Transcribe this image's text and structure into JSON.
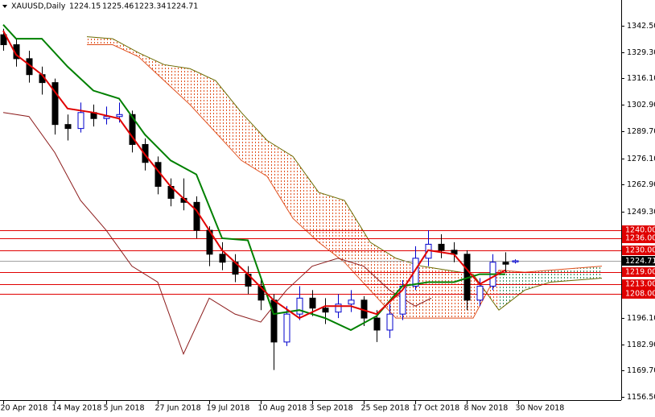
{
  "chart_data": {
    "type": "candlestick",
    "symbol": "XAUUSD,Daily",
    "up_color": "#0000cc",
    "down_color": "#000000",
    "x": [
      0,
      4,
      8,
      12,
      16,
      20,
      24,
      28,
      32,
      36,
      40,
      44,
      48,
      52,
      56,
      60,
      64,
      68,
      72,
      76,
      80,
      84,
      88,
      92,
      96,
      100,
      104,
      108,
      112,
      116,
      120,
      124,
      128,
      132,
      136,
      140,
      144,
      148,
      152,
      156,
      159
    ],
    "ohlc": [
      [
        1338,
        1341,
        1330,
        1333
      ],
      [
        1333,
        1336,
        1322,
        1326
      ],
      [
        1326,
        1330,
        1314,
        1318
      ],
      [
        1318,
        1322,
        1308,
        1314
      ],
      [
        1314,
        1316,
        1288,
        1293
      ],
      [
        1293,
        1298,
        1285,
        1291
      ],
      [
        1291,
        1304,
        1289,
        1299
      ],
      [
        1299,
        1303,
        1292,
        1296
      ],
      [
        1296,
        1302,
        1293,
        1297
      ],
      [
        1297,
        1304,
        1294,
        1298
      ],
      [
        1298,
        1300,
        1279,
        1283
      ],
      [
        1283,
        1286,
        1270,
        1274
      ],
      [
        1274,
        1277,
        1258,
        1262
      ],
      [
        1262,
        1266,
        1252,
        1256
      ],
      [
        1256,
        1266,
        1250,
        1254
      ],
      [
        1254,
        1257,
        1236,
        1240
      ],
      [
        1240,
        1242,
        1222,
        1228
      ],
      [
        1228,
        1234,
        1220,
        1224
      ],
      [
        1224,
        1228,
        1214,
        1218
      ],
      [
        1218,
        1222,
        1208,
        1212
      ],
      [
        1212,
        1216,
        1200,
        1205
      ],
      [
        1205,
        1208,
        1170,
        1184
      ],
      [
        1184,
        1202,
        1182,
        1198
      ],
      [
        1198,
        1212,
        1195,
        1206
      ],
      [
        1206,
        1210,
        1197,
        1201
      ],
      [
        1201,
        1206,
        1193,
        1199
      ],
      [
        1199,
        1208,
        1196,
        1203
      ],
      [
        1203,
        1210,
        1199,
        1205
      ],
      [
        1205,
        1207,
        1192,
        1196
      ],
      [
        1196,
        1200,
        1184,
        1190
      ],
      [
        1190,
        1203,
        1186,
        1198
      ],
      [
        1198,
        1215,
        1195,
        1212
      ],
      [
        1212,
        1232,
        1210,
        1226
      ],
      [
        1226,
        1240,
        1222,
        1233
      ],
      [
        1233,
        1238,
        1226,
        1230
      ],
      [
        1230,
        1234,
        1224,
        1228
      ],
      [
        1228,
        1230,
        1200,
        1205
      ],
      [
        1205,
        1216,
        1202,
        1212
      ],
      [
        1212,
        1228,
        1210,
        1224
      ],
      [
        1224,
        1229,
        1219,
        1223
      ],
      [
        1224.15,
        1225.46,
        1223.34,
        1224.71
      ]
    ],
    "xlim": [
      -1,
      192
    ],
    "xticks": [
      {
        "value": 0,
        "label": "20 Apr 2018"
      },
      {
        "value": 16,
        "label": "14 May 2018"
      },
      {
        "value": 32,
        "label": "5 Jun 2018"
      },
      {
        "value": 48,
        "label": "27 Jun 2018"
      },
      {
        "value": 64,
        "label": "19 Jul 2018"
      },
      {
        "value": 80,
        "label": "10 Aug 2018"
      },
      {
        "value": 96,
        "label": "3 Sep 2018"
      },
      {
        "value": 112,
        "label": "25 Sep 2018"
      },
      {
        "value": 128,
        "label": "17 Oct 2018"
      },
      {
        "value": 144,
        "label": "8 Nov 2018"
      },
      {
        "value": 160,
        "label": "30 Nov 2018"
      }
    ],
    "ylim": [
      1154.9,
      1355.4
    ],
    "yticks": [
      {
        "value": 1342.5,
        "label": "1342.50"
      },
      {
        "value": 1329.3,
        "label": "1329.30"
      },
      {
        "value": 1316.1,
        "label": "1316.10"
      },
      {
        "value": 1302.9,
        "label": "1302.90"
      },
      {
        "value": 1289.7,
        "label": "1289.70"
      },
      {
        "value": 1276.1,
        "label": "1276.10"
      },
      {
        "value": 1262.9,
        "label": "1262.90"
      },
      {
        "value": 1249.3,
        "label": "1249.30"
      },
      {
        "value": 1196.1,
        "label": "1196.10"
      },
      {
        "value": 1182.9,
        "label": "1182.90"
      },
      {
        "value": 1169.7,
        "label": "1169.70"
      },
      {
        "value": 1156.5,
        "label": "1156.50"
      }
    ],
    "levels": {
      "color": "#e00000",
      "values": [
        {
          "value": 1240,
          "label": "1240.00"
        },
        {
          "value": 1236,
          "label": "1236.00"
        },
        {
          "value": 1230,
          "label": "1230.00"
        },
        {
          "value": 1219,
          "label": "1219.00"
        },
        {
          "value": 1213,
          "label": "1213.00"
        },
        {
          "value": 1208,
          "label": "1208.00"
        }
      ]
    },
    "tenkan": {
      "color": "#e00000",
      "x": [
        0,
        4,
        12,
        20,
        28,
        36,
        44,
        52,
        60,
        68,
        76,
        84,
        92,
        100,
        108,
        116,
        124,
        132,
        140,
        148,
        156
      ],
      "values": [
        1340,
        1328,
        1318,
        1301,
        1299,
        1296,
        1278,
        1262,
        1250,
        1230,
        1218,
        1205,
        1196,
        1202,
        1202,
        1198,
        1210,
        1230,
        1228,
        1213,
        1220
      ]
    },
    "kijun": {
      "color": "#008000",
      "x": [
        0,
        4,
        12,
        20,
        28,
        36,
        44,
        52,
        60,
        68,
        76,
        84,
        92,
        100,
        108,
        116,
        124,
        132,
        140,
        148,
        156
      ],
      "values": [
        1343,
        1336,
        1336,
        1322,
        1310,
        1306,
        1288,
        1275,
        1268,
        1236,
        1235,
        1198,
        1200,
        1196,
        1190,
        1197,
        1212,
        1214,
        1214,
        1218,
        1218
      ]
    },
    "chikou": {
      "color": "#8b1a1a",
      "x": [
        0,
        8,
        16,
        24,
        32,
        40,
        48,
        56,
        64,
        72,
        80,
        88,
        96,
        104,
        112,
        120,
        128,
        133
      ],
      "values": [
        1299,
        1297,
        1279,
        1255,
        1240,
        1222,
        1214,
        1178,
        1206,
        1198,
        1194,
        1210,
        1222,
        1226,
        1222,
        1210,
        1202,
        1206
      ]
    },
    "cloud": {
      "bull_color": "#2e8b57",
      "bear_color": "#e0501e",
      "span_a_color": "#e0501e",
      "span_b_color": "#6b6b00",
      "x": [
        26,
        34,
        42,
        50,
        58,
        66,
        74,
        82,
        90,
        98,
        106,
        114,
        122,
        130,
        138,
        146,
        154,
        162,
        170,
        178,
        186
      ],
      "span_a": [
        1333,
        1333,
        1327,
        1315,
        1303,
        1289,
        1275,
        1267,
        1246,
        1234,
        1224,
        1210,
        1196,
        1196,
        1196,
        1196,
        1220,
        1219,
        1220,
        1221,
        1222
      ],
      "span_b": [
        1337,
        1336,
        1329,
        1323,
        1321,
        1315,
        1299,
        1285,
        1277,
        1259,
        1255,
        1234,
        1226,
        1222,
        1220,
        1218,
        1200,
        1210,
        1214,
        1215,
        1216
      ]
    }
  }
}
